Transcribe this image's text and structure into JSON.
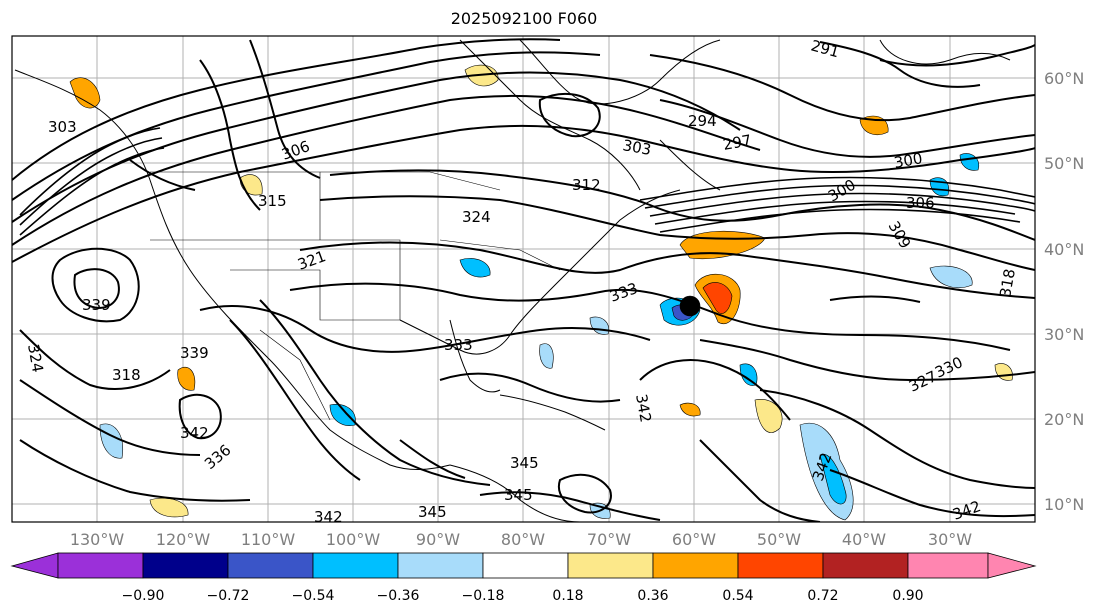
{
  "title": "2025092100 F060",
  "lon_ticks": [
    "130°W",
    "120°W",
    "110°W",
    "100°W",
    "90°W",
    "80°W",
    "70°W",
    "60°W",
    "50°W",
    "40°W",
    "30°W"
  ],
  "lat_ticks": [
    "60°N",
    "50°N",
    "40°N",
    "30°N",
    "20°N",
    "10°N"
  ],
  "contour_labels": [
    "291",
    "294",
    "297",
    "300",
    "300",
    "303",
    "303",
    "306",
    "306",
    "309",
    "312",
    "315",
    "318",
    "318",
    "321",
    "324",
    "324",
    "327",
    "330",
    "333",
    "333",
    "336",
    "339",
    "339",
    "342",
    "342",
    "342",
    "345",
    "345",
    "345",
    "342",
    "342"
  ],
  "colorbar": {
    "ticks": [
      "−0.90",
      "−0.72",
      "−0.54",
      "−0.36",
      "−0.18",
      "0.18",
      "0.36",
      "0.54",
      "0.72",
      "0.90"
    ],
    "colors": [
      "#9b30d9",
      "#00008b",
      "#3a55c8",
      "#00bfff",
      "#a8dcfa",
      "#ffffff",
      "#fce88a",
      "#ffa500",
      "#ff4500",
      "#b22222",
      "#ff85b0"
    ]
  },
  "shading_colors": {
    "light_blue": "#a8dcfa",
    "blue": "#00bfff",
    "mid_blue": "#3a55c8",
    "yellow": "#fce88a",
    "orange": "#ffa500",
    "red": "#ff4500"
  }
}
